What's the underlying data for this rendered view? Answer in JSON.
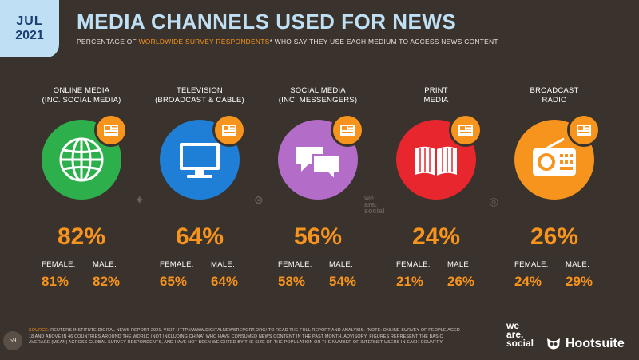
{
  "header": {
    "month": "JUL",
    "year": "2021",
    "title": "MEDIA CHANNELS USED FOR NEWS",
    "subtitle_pre": "PERCENTAGE OF ",
    "subtitle_highlight": "WORLDWIDE SURVEY RESPONDENTS",
    "subtitle_post": "* WHO SAY THEY USE EACH MEDIUM TO ACCESS NEWS CONTENT"
  },
  "channels": [
    {
      "label1": "ONLINE MEDIA",
      "label2": "(INC. SOCIAL MEDIA)",
      "total": "82%",
      "female_label": "FEMALE:",
      "male_label": "MALE:",
      "female": "81%",
      "male": "82%",
      "color": "#2db04b",
      "icon": "globe-icon"
    },
    {
      "label1": "TELEVISION",
      "label2": "(BROADCAST & CABLE)",
      "total": "64%",
      "female_label": "FEMALE:",
      "male_label": "MALE:",
      "female": "65%",
      "male": "64%",
      "color": "#1f7fd6",
      "icon": "tv-icon"
    },
    {
      "label1": "SOCIAL MEDIA",
      "label2": "(INC. MESSENGERS)",
      "total": "56%",
      "female_label": "FEMALE:",
      "male_label": "MALE:",
      "female": "58%",
      "male": "54%",
      "color": "#b46cc9",
      "icon": "chat-bubbles-icon"
    },
    {
      "label1": "PRINT",
      "label2": "MEDIA",
      "total": "24%",
      "female_label": "FEMALE:",
      "male_label": "MALE:",
      "female": "21%",
      "male": "26%",
      "color": "#e8262d",
      "icon": "book-icon"
    },
    {
      "label1": "BROADCAST",
      "label2": "RADIO",
      "total": "26%",
      "female_label": "FEMALE:",
      "male_label": "MALE:",
      "female": "24%",
      "male": "29%",
      "color": "#f7941d",
      "icon": "radio-icon"
    }
  ],
  "footer": {
    "page_number": "59",
    "line1_pre": "SOURCE: ",
    "line1": "REUTERS INSTITUTE DIGITAL NEWS REPORT 2021. VISIT HTTP://WWW.DIGITALNEWSREPORT.ORG/ TO READ THE FULL REPORT AND ANALYSIS. *NOTE: ONLINE SURVEY OF PEOPLE AGED",
    "line2": "18 AND ABOVE IN 46 COUNTRIES AROUND THE WORLD (NOT INCLUDING CHINA) WHO HAVE CONSUMED NEWS CONTENT IN THE PAST MONTH. ADVISORY: FIGURES REPRESENT THE BASIC",
    "line3": "AVERAGE (MEAN) ACROSS GLOBAL SURVEY RESPONDENTS, AND HAVE NOT BEEN WEIGHTED BY THE SIZE OF THE POPULATION OR THE NUMBER OF INTERNET USERS IN EACH COUNTRY.",
    "brand1_l1": "we",
    "brand1_l2": "are.",
    "brand1_l3": "social",
    "brand2": "Hootsuite"
  }
}
